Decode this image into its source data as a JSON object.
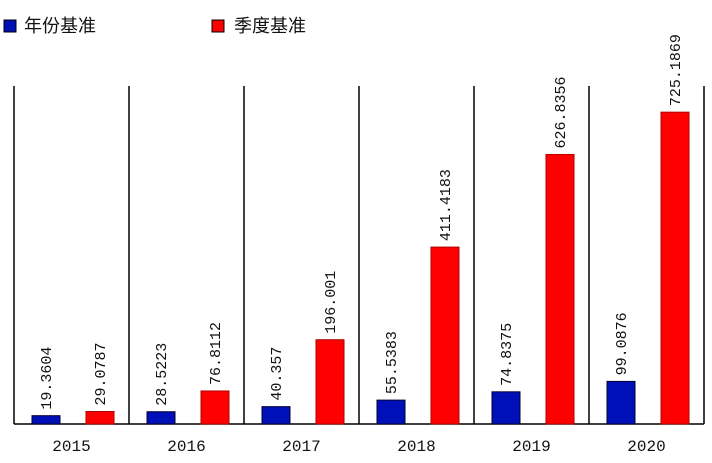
{
  "chart_data": {
    "type": "bar",
    "title": "",
    "xlabel": "",
    "ylabel": "",
    "categories": [
      "2015",
      "2016",
      "2017",
      "2018",
      "2019",
      "2020"
    ],
    "series": [
      {
        "name": "年份基准",
        "color": "#0010b8",
        "values": [
          19.3604,
          28.5223,
          40.357,
          55.5383,
          74.8375,
          99.0876
        ],
        "labels": [
          "19.3604",
          "28.5223",
          "40.357",
          "55.5383",
          "74.8375",
          "99.0876"
        ]
      },
      {
        "name": "季度基准",
        "color": "#ff0000",
        "values": [
          29.0787,
          76.8112,
          196.001,
          411.4183,
          626.8356,
          725.1869
        ],
        "labels": [
          "29.0787",
          "76.8112",
          "196.001",
          "411.4183",
          "626.8356",
          "725.1869"
        ]
      }
    ],
    "ylim": [
      0,
      800
    ],
    "grid": "vertical separators between categories",
    "legend_position": "top-left"
  }
}
